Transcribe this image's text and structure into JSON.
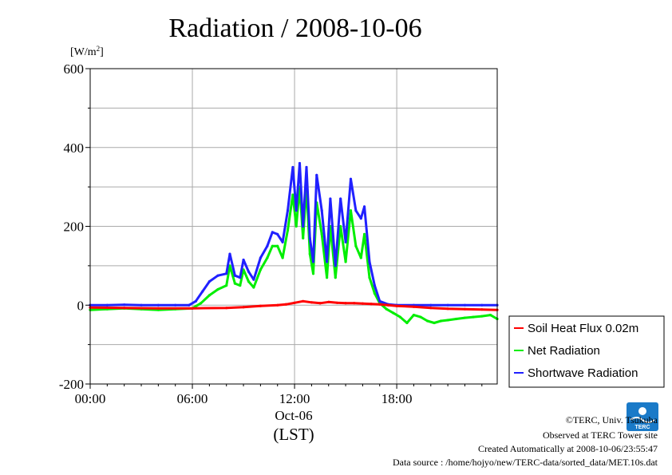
{
  "chart_data": {
    "type": "line",
    "title": "Radiation / 2008-10-06",
    "ylabel": "[W/m²]",
    "ylabel_base": "[W/m",
    "ylabel_sup": "2",
    "ylabel_end": "]",
    "ylim": [
      -200,
      600
    ],
    "yticks": [
      -200,
      0,
      200,
      400,
      600
    ],
    "xlim": [
      0,
      23.9
    ],
    "xticks": [
      {
        "value": 0,
        "label": "00:00"
      },
      {
        "value": 6,
        "label": "06:00"
      },
      {
        "value": 12,
        "label": "12:00"
      },
      {
        "value": 18,
        "label": "18:00"
      }
    ],
    "x_date_label": "Oct-06",
    "xlabel": "(LST)",
    "grid": true,
    "legend_position": "outside-right-bottom",
    "series": [
      {
        "name": "Soil Heat Flux 0.02m",
        "color": "#ff0000",
        "x": [
          0,
          2,
          4,
          6,
          8,
          9,
          10,
          11,
          11.5,
          12,
          12.5,
          13,
          13.5,
          14,
          14.5,
          15,
          15.5,
          16,
          16.5,
          17,
          17.5,
          18,
          19,
          20,
          21,
          22,
          23,
          23.9
        ],
        "y": [
          -6,
          -7,
          -8,
          -8,
          -7,
          -5,
          -2,
          0,
          2,
          6,
          10,
          7,
          5,
          8,
          6,
          5,
          5,
          4,
          3,
          2,
          0,
          -2,
          -4,
          -7,
          -9,
          -10,
          -11,
          -12
        ]
      },
      {
        "name": "Net Radiation",
        "color": "#00ee00",
        "x": [
          0,
          1,
          2,
          3,
          4,
          5,
          6,
          6.5,
          7,
          7.5,
          8,
          8.2,
          8.5,
          8.8,
          9,
          9.3,
          9.6,
          10,
          10.4,
          10.7,
          11,
          11.3,
          11.6,
          11.9,
          12.1,
          12.3,
          12.5,
          12.7,
          12.9,
          13.1,
          13.3,
          13.6,
          13.9,
          14.1,
          14.4,
          14.7,
          15,
          15.3,
          15.6,
          15.9,
          16.1,
          16.4,
          16.7,
          17,
          17.4,
          17.8,
          18.2,
          18.6,
          19,
          19.4,
          19.8,
          20.2,
          20.6,
          21,
          21.5,
          22,
          22.5,
          23,
          23.5,
          23.9
        ],
        "y": [
          -12,
          -10,
          -8,
          -10,
          -12,
          -10,
          -8,
          5,
          25,
          40,
          50,
          100,
          55,
          50,
          90,
          60,
          45,
          90,
          120,
          150,
          150,
          120,
          190,
          280,
          200,
          300,
          170,
          300,
          130,
          80,
          260,
          180,
          70,
          200,
          70,
          200,
          110,
          240,
          150,
          120,
          180,
          70,
          30,
          5,
          -10,
          -20,
          -30,
          -45,
          -25,
          -30,
          -40,
          -45,
          -40,
          -38,
          -35,
          -32,
          -30,
          -28,
          -25,
          -35
        ]
      },
      {
        "name": "Shortwave Radiation",
        "color": "#2020ff",
        "x": [
          0,
          1,
          2,
          3,
          4,
          5,
          5.8,
          6.2,
          6.6,
          7,
          7.5,
          8,
          8.2,
          8.5,
          8.8,
          9,
          9.3,
          9.6,
          10,
          10.4,
          10.7,
          11,
          11.3,
          11.6,
          11.9,
          12.1,
          12.3,
          12.5,
          12.7,
          12.9,
          13.1,
          13.3,
          13.6,
          13.9,
          14.1,
          14.4,
          14.7,
          15,
          15.3,
          15.6,
          15.9,
          16.1,
          16.4,
          16.7,
          17,
          17.5,
          18,
          19,
          20,
          21,
          22,
          23,
          23.9
        ],
        "y": [
          0,
          0,
          1,
          0,
          0,
          0,
          0,
          10,
          35,
          60,
          75,
          80,
          130,
          75,
          70,
          115,
          85,
          65,
          120,
          150,
          185,
          180,
          160,
          240,
          350,
          240,
          360,
          200,
          350,
          170,
          110,
          330,
          240,
          110,
          270,
          100,
          270,
          160,
          320,
          240,
          220,
          250,
          110,
          50,
          10,
          2,
          0,
          0,
          0,
          0,
          0,
          0,
          0
        ]
      }
    ]
  },
  "credits": {
    "line1": "©TERC, Univ. Tsukuba",
    "line2": "Observed at TERC Tower site",
    "line3": "Created Automatically at 2008-10-06/23:55:47",
    "line4": "Data source : /home/hojyo/new/TERC-data/sorted_data/MET.10s.dat"
  },
  "logo": {
    "text": "TERC",
    "color": "#1a7ac8"
  }
}
